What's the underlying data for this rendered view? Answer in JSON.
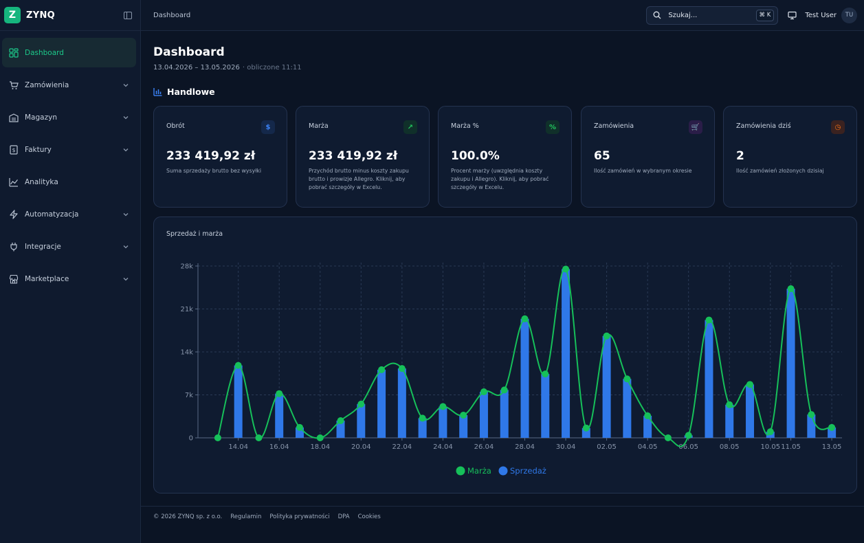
{
  "app": {
    "logo_letter": "Z",
    "name": "ZYNQ"
  },
  "sidebar": {
    "items": [
      {
        "label": "Dashboard",
        "icon": "grid-icon",
        "active": true
      },
      {
        "label": "Zamówienia",
        "icon": "cart-icon",
        "expandable": true
      },
      {
        "label": "Magazyn",
        "icon": "warehouse-icon",
        "expandable": true
      },
      {
        "label": "Faktury",
        "icon": "invoice-icon",
        "expandable": true
      },
      {
        "label": "Analityka",
        "icon": "trend-icon",
        "expandable": false
      },
      {
        "label": "Automatyzacja",
        "icon": "bolt-icon",
        "expandable": true
      },
      {
        "label": "Integracje",
        "icon": "plug-icon",
        "expandable": true
      },
      {
        "label": "Marketplace",
        "icon": "store-icon",
        "expandable": true
      }
    ]
  },
  "topbar": {
    "breadcrumb": "Dashboard",
    "search_placeholder": "Szukaj...",
    "search_shortcut": "⌘ K",
    "user_name": "Test User",
    "user_initials": "TU"
  },
  "page": {
    "title": "Dashboard",
    "date_range": "13.04.2026 – 13.05.2026",
    "computed": "· obliczone 11:11",
    "section_title": "Handlowe"
  },
  "cards": [
    {
      "label": "Obrót",
      "value": "233 419,92 zł",
      "desc": "Suma sprzedaży brutto bez wysyłki",
      "icon": "dollar-icon",
      "icon_glyph": "$",
      "icon_color": "#3b82f6",
      "icon_bg": "#14284a"
    },
    {
      "label": "Marża",
      "value": "233 419,92 zł",
      "desc": "Przychód brutto minus koszty zakupu brutto i prowizje Allegro. Kliknij, aby pobrać szczegóły w Excelu.",
      "icon": "trending-up-icon",
      "icon_glyph": "↗",
      "icon_color": "#22c55e",
      "icon_bg": "#10302a"
    },
    {
      "label": "Marża %",
      "value": "100.0%",
      "desc": "Procent marży (uwzględnia koszty zakupu i Allegro). Kliknij, aby pobrać szczegóły w Excelu.",
      "icon": "percent-icon",
      "icon_glyph": "%",
      "icon_color": "#22c55e",
      "icon_bg": "#10302a"
    },
    {
      "label": "Zamówienia",
      "value": "65",
      "desc": "Ilość zamówień w wybranym okresie",
      "icon": "cart-icon",
      "icon_glyph": "🛒",
      "icon_color": "#a855f7",
      "icon_bg": "#2a1d48"
    },
    {
      "label": "Zamówienia dziś",
      "value": "2",
      "desc": "Ilość zamówień złożonych dzisiaj",
      "icon": "calendar-clock-icon",
      "icon_glyph": "◷",
      "icon_color": "#f97316",
      "icon_bg": "#3a2220"
    }
  ],
  "chart_title": "Sprzedaż i marża",
  "chart_data": {
    "type": "bar",
    "x": [
      "13.04",
      "14.04",
      "15.04",
      "16.04",
      "17.04",
      "18.04",
      "19.04",
      "20.04",
      "21.04",
      "22.04",
      "23.04",
      "24.04",
      "25.04",
      "26.04",
      "27.04",
      "28.04",
      "29.04",
      "30.04",
      "01.05",
      "02.05",
      "03.05",
      "04.05",
      "05.05",
      "06.05",
      "07.05",
      "08.05",
      "09.05",
      "10.05",
      "11.05",
      "12.05",
      "13.05"
    ],
    "tick_labels": [
      "14.04",
      "16.04",
      "18.04",
      "20.04",
      "22.04",
      "24.04",
      "26.04",
      "28.04",
      "30.04",
      "02.05",
      "04.05",
      "06.05",
      "08.05",
      "10.05",
      "11.05",
      "13.05"
    ],
    "tick_indices": [
      1,
      3,
      5,
      7,
      9,
      11,
      13,
      15,
      17,
      19,
      21,
      23,
      25,
      27,
      28,
      30
    ],
    "series": [
      {
        "name": "Marża",
        "type": "line",
        "color": "#16c05a",
        "values": [
          0,
          11800,
          0,
          7200,
          1700,
          0,
          2800,
          5500,
          11100,
          11300,
          3200,
          5100,
          3700,
          7500,
          7800,
          19400,
          10400,
          27500,
          1600,
          16600,
          9600,
          3600,
          0,
          400,
          19200,
          5400,
          8700,
          1000,
          24300,
          3800,
          1700
        ]
      },
      {
        "name": "Sprzedaż",
        "type": "bar",
        "color": "#2f78e8",
        "values": [
          0,
          11800,
          0,
          7200,
          1700,
          0,
          2800,
          5500,
          11100,
          11300,
          3200,
          5100,
          3700,
          7500,
          7800,
          19400,
          10400,
          27500,
          1600,
          16600,
          9600,
          3600,
          0,
          400,
          19200,
          5400,
          8700,
          1000,
          24300,
          3800,
          1700
        ]
      }
    ],
    "y_ticks": [
      "0",
      "7k",
      "14k",
      "21k",
      "28k"
    ],
    "ylim": [
      0,
      28000
    ],
    "grid": true,
    "legend": "bottom-center"
  },
  "footer": {
    "copyright": "© 2026 ZYNQ sp. z o.o.",
    "links": [
      "Regulamin",
      "Polityka prywatności",
      "DPA",
      "Cookies"
    ]
  }
}
